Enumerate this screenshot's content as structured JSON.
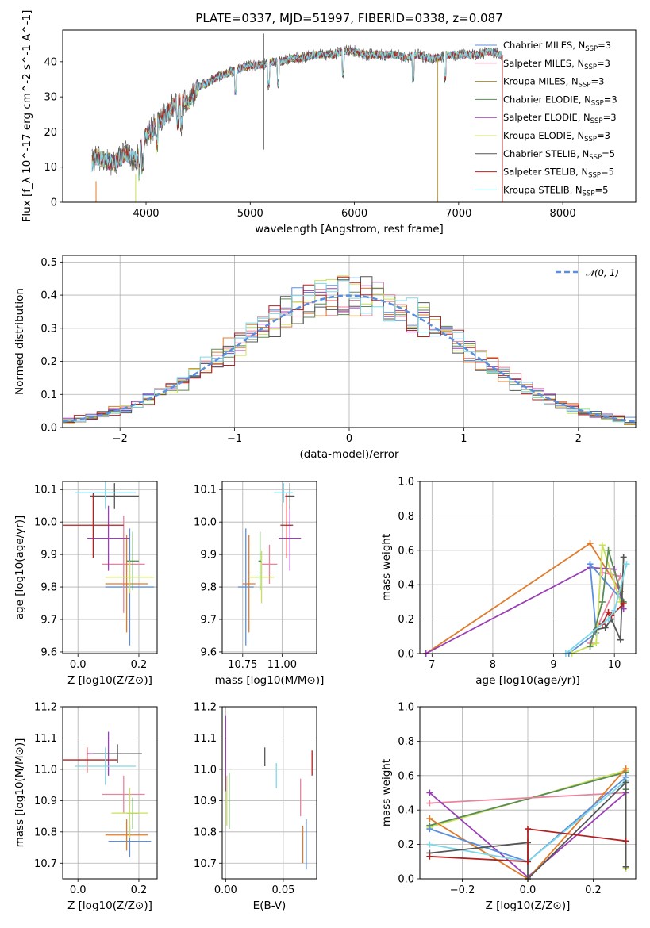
{
  "figure": {
    "title": "PLATE=0337, MJD=51997, FIBERID=0338, z=0.087"
  },
  "chart_data": [
    {
      "id": "spectrum",
      "type": "line",
      "xlabel": "wavelength [Angstrom, rest frame]",
      "ylabel": "Flux [f_λ 10^-17 erg cm^-2 s^-1 A^-1]",
      "xlim": [
        3200,
        8700
      ],
      "ylim": [
        0,
        49
      ],
      "xticks": [
        4000,
        5000,
        6000,
        7000,
        8000
      ],
      "yticks": [
        0,
        10,
        20,
        30,
        40
      ],
      "grid": false,
      "legend_position": "top-right",
      "continuum": {
        "x": [
          3480,
          3520,
          3600,
          3700,
          3800,
          3900,
          4000,
          4100,
          4200,
          4300,
          4400,
          4500,
          4600,
          4700,
          4800,
          4900,
          5000,
          5100,
          5200,
          5300,
          5400,
          5500,
          5600,
          5700,
          5800,
          5900,
          6000,
          6100,
          6200,
          6300,
          6400,
          6500,
          6600,
          6700,
          6800,
          6900,
          7000,
          7100,
          7200,
          7300,
          7400
        ],
        "y": [
          11,
          13,
          12,
          11,
          14,
          12,
          19,
          22,
          25,
          29,
          28,
          33,
          34,
          36,
          37,
          38,
          39,
          39,
          40,
          40,
          41,
          41,
          42,
          42,
          42,
          43,
          43,
          42,
          42,
          42,
          42,
          41,
          42,
          41,
          41,
          42,
          42,
          42,
          42,
          43,
          42
        ]
      },
      "series": [
        {
          "name": "Chabrier MILES, N_SSP=3",
          "color": "#5b8fdc"
        },
        {
          "name": "Salpeter MILES, N_SSP=3",
          "color": "#e8859c"
        },
        {
          "name": "Kroupa MILES, N_SSP=3",
          "color": "#a8862a"
        },
        {
          "name": "Chabrier ELODIE, N_SSP=3",
          "color": "#5a8a55"
        },
        {
          "name": "Salpeter ELODIE, N_SSP=3",
          "color": "#9a3fb5"
        },
        {
          "name": "Kroupa ELODIE, N_SSP=3",
          "color": "#d4e36a"
        },
        {
          "name": "Chabrier STELIB, N_SSP=5",
          "color": "#555555"
        },
        {
          "name": "Salpeter STELIB, N_SSP=5",
          "color": "#b22222"
        },
        {
          "name": "Kroupa STELIB, N_SSP=5",
          "color": "#7fd8e8"
        }
      ]
    },
    {
      "id": "residuals",
      "type": "step-histogram",
      "xlabel": "(data-model)/error",
      "ylabel": "Normed distribution",
      "xlim": [
        -2.5,
        2.5
      ],
      "ylim": [
        0,
        0.52
      ],
      "xticks": [
        -2,
        -1,
        0,
        1,
        2
      ],
      "yticks": [
        0.0,
        0.1,
        0.2,
        0.3,
        0.4,
        0.5
      ],
      "grid": true,
      "legend_position": "top-right",
      "reference": {
        "name": "𝒩(0, 1)",
        "color": "#5b8fdc",
        "style": "dashed"
      },
      "histogram_colors": [
        "#5b8fdc",
        "#e8859c",
        "#e07b2a",
        "#5a8a55",
        "#9a3fb5",
        "#c8e05a",
        "#555555",
        "#b22222",
        "#7fd8e8"
      ]
    },
    {
      "id": "age-vs-Z",
      "type": "errorbar",
      "xlabel": "Z [log10(Z/Z⊙)]",
      "ylabel": "age [log10(age/yr)]",
      "xlim": [
        -0.05,
        0.26
      ],
      "ylim": [
        9.595,
        10.125
      ],
      "xticks": [
        0.0,
        0.2
      ],
      "yticks": [
        9.6,
        9.7,
        9.8,
        9.9,
        10.0,
        10.1
      ],
      "points": [
        {
          "color": "#5b8fdc",
          "x": 0.17,
          "xerr": 0.08,
          "y": 9.8,
          "yerr": 0.18
        },
        {
          "color": "#e8859c",
          "x": 0.15,
          "xerr": 0.07,
          "y": 9.87,
          "yerr": 0.15
        },
        {
          "color": "#e07b2a",
          "x": 0.16,
          "xerr": 0.07,
          "y": 9.81,
          "yerr": 0.15
        },
        {
          "color": "#5a8a55",
          "x": 0.18,
          "xerr": 0.02,
          "y": 9.88,
          "yerr": 0.09
        },
        {
          "color": "#9a3fb5",
          "x": 0.1,
          "xerr": 0.07,
          "y": 9.95,
          "yerr": 0.1
        },
        {
          "color": "#c8e05a",
          "x": 0.17,
          "xerr": 0.08,
          "y": 9.83,
          "yerr": 0.05
        },
        {
          "color": "#555555",
          "x": 0.12,
          "xerr": 0.08,
          "y": 10.08,
          "yerr": 0.04
        },
        {
          "color": "#b22222",
          "x": 0.05,
          "xerr": 0.1,
          "y": 9.99,
          "yerr": 0.1
        },
        {
          "color": "#7fd8e8",
          "x": 0.09,
          "xerr": 0.1,
          "y": 10.09,
          "yerr": 0.05
        }
      ]
    },
    {
      "id": "age-vs-mass",
      "type": "errorbar",
      "xlabel": "mass [log10(M/M⊙)]",
      "ylabel": "",
      "xlim": [
        10.62,
        11.22
      ],
      "ylim": [
        9.595,
        10.125
      ],
      "xticks": [
        10.75,
        11.0
      ],
      "xtick_labels": [
        "10.75",
        "11.00"
      ],
      "yticks": [
        9.6,
        9.7,
        9.8,
        9.9,
        10.0,
        10.1
      ],
      "points": [
        {
          "color": "#5b8fdc",
          "x": 10.77,
          "xerr": 0.05,
          "y": 9.8,
          "yerr": 0.18
        },
        {
          "color": "#e8859c",
          "x": 10.92,
          "xerr": 0.05,
          "y": 9.87,
          "yerr": 0.06
        },
        {
          "color": "#e07b2a",
          "x": 10.79,
          "xerr": 0.04,
          "y": 9.81,
          "yerr": 0.15
        },
        {
          "color": "#5a8a55",
          "x": 10.86,
          "xerr": 0.01,
          "y": 9.88,
          "yerr": 0.09
        },
        {
          "color": "#9a3fb5",
          "x": 11.05,
          "xerr": 0.07,
          "y": 9.95,
          "yerr": 0.1
        },
        {
          "color": "#c8e05a",
          "x": 10.87,
          "xerr": 0.08,
          "y": 9.83,
          "yerr": 0.08
        },
        {
          "color": "#555555",
          "x": 11.05,
          "xerr": 0.03,
          "y": 10.08,
          "yerr": 0.04
        },
        {
          "color": "#b22222",
          "x": 11.03,
          "xerr": 0.04,
          "y": 9.99,
          "yerr": 0.1
        },
        {
          "color": "#7fd8e8",
          "x": 11.01,
          "xerr": 0.06,
          "y": 10.09,
          "yerr": 0.03
        }
      ]
    },
    {
      "id": "weight-vs-age",
      "type": "line",
      "xlabel": "age  [log10(age/yr)]",
      "ylabel": "mass weight",
      "xlim": [
        6.8,
        10.35
      ],
      "ylim": [
        0,
        1
      ],
      "xticks": [
        7,
        8,
        9,
        10
      ],
      "yticks": [
        0.0,
        0.2,
        0.4,
        0.6,
        0.8,
        1.0
      ],
      "grid": true,
      "series": [
        {
          "color": "#e07b2a",
          "x": [
            6.9,
            9.6,
            10.1
          ],
          "y": [
            0.0,
            0.64,
            0.36
          ]
        },
        {
          "color": "#9a3fb5",
          "x": [
            6.9,
            9.6,
            10.0,
            10.15
          ],
          "y": [
            0.0,
            0.5,
            0.49,
            0.26
          ]
        },
        {
          "color": "#e8859c",
          "x": [
            9.6,
            10.1,
            9.8
          ],
          "y": [
            0.06,
            0.45,
            0.47
          ]
        },
        {
          "color": "#5b8fdc",
          "x": [
            9.25,
            9.7,
            9.6,
            10.15
          ],
          "y": [
            0.0,
            0.12,
            0.52,
            0.3
          ]
        },
        {
          "color": "#c8e05a",
          "x": [
            9.3,
            9.7,
            9.8,
            10.1
          ],
          "y": [
            0.0,
            0.06,
            0.63,
            0.3
          ]
        },
        {
          "color": "#5a8a55",
          "x": [
            9.6,
            9.8,
            9.9,
            10.15
          ],
          "y": [
            0.04,
            0.3,
            0.6,
            0.3
          ]
        },
        {
          "color": "#555555",
          "x": [
            9.7,
            9.85,
            9.95,
            10.1,
            10.15
          ],
          "y": [
            0.14,
            0.15,
            0.2,
            0.08,
            0.56
          ]
        },
        {
          "color": "#b22222",
          "x": [
            9.8,
            9.9,
            9.95,
            10.15
          ],
          "y": [
            0.17,
            0.24,
            0.22,
            0.29
          ]
        },
        {
          "color": "#7fd8e8",
          "x": [
            9.2,
            9.9,
            10.0,
            10.2
          ],
          "y": [
            0.0,
            0.2,
            0.25,
            0.52
          ]
        }
      ]
    },
    {
      "id": "mass-vs-Z",
      "type": "errorbar",
      "xlabel": "Z [log10(Z/Z⊙)]",
      "ylabel": "mass [log10(M/M⊙)]",
      "xlim": [
        -0.05,
        0.26
      ],
      "ylim": [
        10.65,
        11.2
      ],
      "xticks": [
        0.0,
        0.2
      ],
      "yticks": [
        10.7,
        10.8,
        10.9,
        11.0,
        11.1,
        11.2
      ],
      "points": [
        {
          "color": "#5b8fdc",
          "x": 0.17,
          "xerr": 0.07,
          "y": 10.77,
          "yerr": 0.05
        },
        {
          "color": "#e8859c",
          "x": 0.15,
          "xerr": 0.07,
          "y": 10.92,
          "yerr": 0.06
        },
        {
          "color": "#e07b2a",
          "x": 0.16,
          "xerr": 0.07,
          "y": 10.79,
          "yerr": 0.05
        },
        {
          "color": "#5a8a55",
          "x": 0.18,
          "xerr": 0.02,
          "y": 10.86,
          "yerr": 0.05
        },
        {
          "color": "#9a3fb5",
          "x": 0.1,
          "xerr": 0.07,
          "y": 11.05,
          "yerr": 0.07
        },
        {
          "color": "#c8e05a",
          "x": 0.17,
          "xerr": 0.06,
          "y": 10.86,
          "yerr": 0.08
        },
        {
          "color": "#555555",
          "x": 0.13,
          "xerr": 0.08,
          "y": 11.05,
          "yerr": 0.03
        },
        {
          "color": "#b22222",
          "x": 0.03,
          "xerr": 0.1,
          "y": 11.03,
          "yerr": 0.04
        },
        {
          "color": "#7fd8e8",
          "x": 0.09,
          "xerr": 0.1,
          "y": 11.01,
          "yerr": 0.06
        }
      ]
    },
    {
      "id": "mass-vs-ebv",
      "type": "errorbar",
      "xlabel": "E(B-V)",
      "ylabel": "",
      "xlim": [
        -0.003,
        0.079
      ],
      "ylim": [
        10.65,
        11.2
      ],
      "xticks": [
        0.0,
        0.05
      ],
      "xtick_labels": [
        "0.00",
        "0.05"
      ],
      "yticks": [
        10.7,
        10.8,
        10.9,
        11.0,
        11.1,
        11.2
      ],
      "points": [
        {
          "color": "#5b8fdc",
          "x": 0.07,
          "xerr": 0,
          "y": 10.76,
          "yerr": 0.08
        },
        {
          "color": "#e8859c",
          "x": 0.065,
          "xerr": 0,
          "y": 10.91,
          "yerr": 0.06
        },
        {
          "color": "#e07b2a",
          "x": 0.067,
          "xerr": 0,
          "y": 10.76,
          "yerr": 0.06
        },
        {
          "color": "#5a8a55",
          "x": 0.003,
          "xerr": 0,
          "y": 10.9,
          "yerr": 0.09
        },
        {
          "color": "#9a3fb5",
          "x": 0.0,
          "xerr": 0,
          "y": 11.05,
          "yerr": 0.12
        },
        {
          "color": "#c8e05a",
          "x": 0.001,
          "xerr": 0,
          "y": 10.9,
          "yerr": 0.08
        },
        {
          "color": "#555555",
          "x": 0.034,
          "xerr": 0,
          "y": 11.04,
          "yerr": 0.03
        },
        {
          "color": "#b22222",
          "x": 0.075,
          "xerr": 0,
          "y": 11.02,
          "yerr": 0.04
        },
        {
          "color": "#7fd8e8",
          "x": 0.044,
          "xerr": 0,
          "y": 10.98,
          "yerr": 0.04
        }
      ]
    },
    {
      "id": "weight-vs-Z",
      "type": "line",
      "xlabel": "Z [log10(Z/Z⊙)]",
      "ylabel": "mass weight",
      "xlim": [
        -0.33,
        0.33
      ],
      "ylim": [
        0,
        1
      ],
      "xticks": [
        -0.2,
        0.0,
        0.2
      ],
      "xtick_labels": [
        "−0.2",
        "0.0",
        "0.2"
      ],
      "yticks": [
        0.0,
        0.2,
        0.4,
        0.6,
        0.8,
        1.0
      ],
      "grid": true,
      "series": [
        {
          "color": "#c8e05a",
          "x": [
            -0.3,
            0.3,
            0.3
          ],
          "y": [
            0.3,
            0.63,
            0.06
          ]
        },
        {
          "color": "#5a8a55",
          "x": [
            -0.3,
            0.3,
            0.3
          ],
          "y": [
            0.31,
            0.62,
            0.52
          ]
        },
        {
          "color": "#e8859c",
          "x": [
            -0.3,
            0.3
          ],
          "y": [
            0.44,
            0.5
          ]
        },
        {
          "color": "#9a3fb5",
          "x": [
            -0.3,
            0.0,
            0.3
          ],
          "y": [
            0.5,
            0.01,
            0.5
          ]
        },
        {
          "color": "#e07b2a",
          "x": [
            -0.3,
            0.0,
            0.3
          ],
          "y": [
            0.35,
            0.0,
            0.64
          ]
        },
        {
          "color": "#5b8fdc",
          "x": [
            -0.3,
            0.0,
            0.3
          ],
          "y": [
            0.29,
            0.1,
            0.59
          ]
        },
        {
          "color": "#7fd8e8",
          "x": [
            -0.3,
            0.0,
            0.3
          ],
          "y": [
            0.2,
            0.1,
            0.57
          ]
        },
        {
          "color": "#555555",
          "x": [
            -0.3,
            0.0,
            0.0,
            0.3,
            0.3
          ],
          "y": [
            0.15,
            0.21,
            0.0,
            0.56,
            0.07
          ]
        },
        {
          "color": "#b22222",
          "x": [
            -0.3,
            0.0,
            0.0,
            0.3
          ],
          "y": [
            0.13,
            0.1,
            0.29,
            0.22
          ]
        }
      ]
    }
  ]
}
